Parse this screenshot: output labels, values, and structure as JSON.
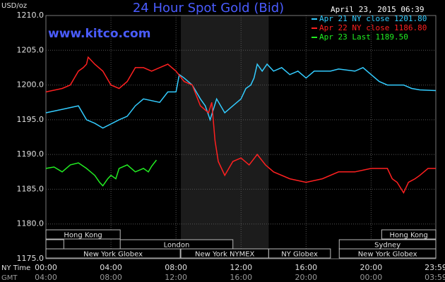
{
  "chart_data": {
    "type": "line",
    "title": "24 Hour Spot Gold (Bid)",
    "date": "April 23, 2015 06:39",
    "watermark": "www.kitco.com",
    "y_label": "USD/oz",
    "x_label": "NY Time",
    "x2_label": "GMT",
    "ylim": [
      1175,
      1210
    ],
    "yticks": [
      {
        "value": 1175,
        "label": "1175.0"
      },
      {
        "value": 1180,
        "label": "1180.0"
      },
      {
        "value": 1185,
        "label": "1185.0"
      },
      {
        "value": 1190,
        "label": "1190.0"
      },
      {
        "value": 1195,
        "label": "1195.0"
      },
      {
        "value": 1200,
        "label": "1200.0"
      },
      {
        "value": 1205,
        "label": "1205.0"
      },
      {
        "value": 1210,
        "label": "1210.0"
      }
    ],
    "xlim": [
      0,
      23.98
    ],
    "xticks": [
      {
        "value": 0,
        "label": "00:00"
      },
      {
        "value": 4,
        "label": "04:00"
      },
      {
        "value": 8,
        "label": "08:00"
      },
      {
        "value": 12,
        "label": "12:00"
      },
      {
        "value": 16,
        "label": "16:00"
      },
      {
        "value": 20,
        "label": "20:00"
      },
      {
        "value": 23.98,
        "label": "23:59"
      }
    ],
    "x2tick_labels": [
      "04:00",
      "08:00",
      "12:00",
      "16:00",
      "20:00",
      "00:00",
      "03:59"
    ],
    "grid": true,
    "shaded_range": [
      8.3,
      13.7
    ],
    "session_rows": [
      [
        {
          "label": "Hong Kong",
          "start": 0,
          "end": 4.57
        },
        {
          "label": "Hong Kong",
          "start": 20.65,
          "end": 23.98
        }
      ],
      [
        {
          "start": 0,
          "end": 1.1
        },
        {
          "label": "London",
          "start": 4.57,
          "end": 11.5
        },
        {
          "label": "Sydney",
          "start": 18.04,
          "end": 23.98
        }
      ],
      [
        {
          "label": "New York Globex",
          "start": 0,
          "end": 8.26
        },
        {
          "label": "New York NYMEX",
          "start": 8.3,
          "end": 13.7
        },
        {
          "label": "NY Globex",
          "start": 13.7,
          "end": 17.5
        },
        {
          "label": "New York Globex",
          "start": 18.04,
          "end": 23.98
        }
      ]
    ],
    "series": [
      {
        "name": "Apr 21 NY close 1201.80",
        "color": "#33ccff",
        "x": [
          0,
          1,
          2,
          2.5,
          3,
          3.5,
          4.5,
          5,
          5.5,
          6,
          7,
          7.5,
          8,
          8.2,
          8.5,
          9,
          9.5,
          9.8,
          10.1,
          10.5,
          11,
          11.5,
          12,
          12.3,
          12.6,
          12.8,
          13,
          13.3,
          13.6,
          14,
          14.5,
          15,
          15.5,
          16,
          16.5,
          17.5,
          18,
          19,
          19.5,
          20,
          20.5,
          21,
          22,
          22.5,
          23,
          23.98
        ],
        "values": [
          1196,
          1196.5,
          1197,
          1195,
          1194.5,
          1193.8,
          1195,
          1195.5,
          1197,
          1198,
          1197.5,
          1199,
          1199,
          1201.5,
          1201,
          1200,
          1198,
          1197,
          1195,
          1198,
          1196,
          1197,
          1198,
          1199.5,
          1200,
          1201,
          1203,
          1202,
          1203,
          1202,
          1202.5,
          1201.5,
          1202,
          1201,
          1202,
          1202,
          1202.3,
          1202,
          1202.5,
          1201.5,
          1200.5,
          1200,
          1200,
          1199.5,
          1199.3,
          1199.2
        ]
      },
      {
        "name": "Apr 22 NY close 1186.80",
        "color": "#ff2020",
        "x": [
          0,
          1,
          1.5,
          2,
          2.3,
          2.5,
          2.6,
          3,
          3.5,
          4,
          4.5,
          5,
          5.5,
          6,
          6.5,
          7,
          7.5,
          8,
          8.5,
          9,
          9.5,
          10,
          10.2,
          10.4,
          10.6,
          11,
          11.5,
          12,
          12.5,
          13,
          13.5,
          14,
          15,
          16,
          17,
          18,
          19,
          20,
          21,
          21.3,
          21.6,
          22,
          22.3,
          22.7,
          23,
          23.5,
          23.98
        ],
        "values": [
          1199,
          1199.5,
          1200,
          1202,
          1202.5,
          1203,
          1204,
          1203,
          1202,
          1200,
          1199.5,
          1200.5,
          1202.5,
          1202.5,
          1202,
          1202.5,
          1203,
          1202,
          1200.5,
          1200,
          1197,
          1196,
          1197.5,
          1192,
          1189,
          1187,
          1189,
          1189.5,
          1188.5,
          1190,
          1188.5,
          1187.5,
          1186.5,
          1186,
          1186.5,
          1187.5,
          1187.5,
          1188,
          1188,
          1186.5,
          1186,
          1184.5,
          1186,
          1186.5,
          1187,
          1188,
          1188
        ]
      },
      {
        "name": "Apr 23 Last 1189.50",
        "color": "#22ee22",
        "x": [
          0,
          0.5,
          1,
          1.5,
          2,
          2.5,
          3,
          3.3,
          3.5,
          3.8,
          4,
          4.3,
          4.5,
          5,
          5.5,
          6,
          6.3,
          6.5,
          6.8
        ],
        "values": [
          1188,
          1188.2,
          1187.5,
          1188.5,
          1188.8,
          1188,
          1187,
          1186,
          1185.5,
          1186.5,
          1187,
          1186.5,
          1188,
          1188.5,
          1187.5,
          1188,
          1187.5,
          1188.3,
          1189.2
        ]
      }
    ]
  }
}
